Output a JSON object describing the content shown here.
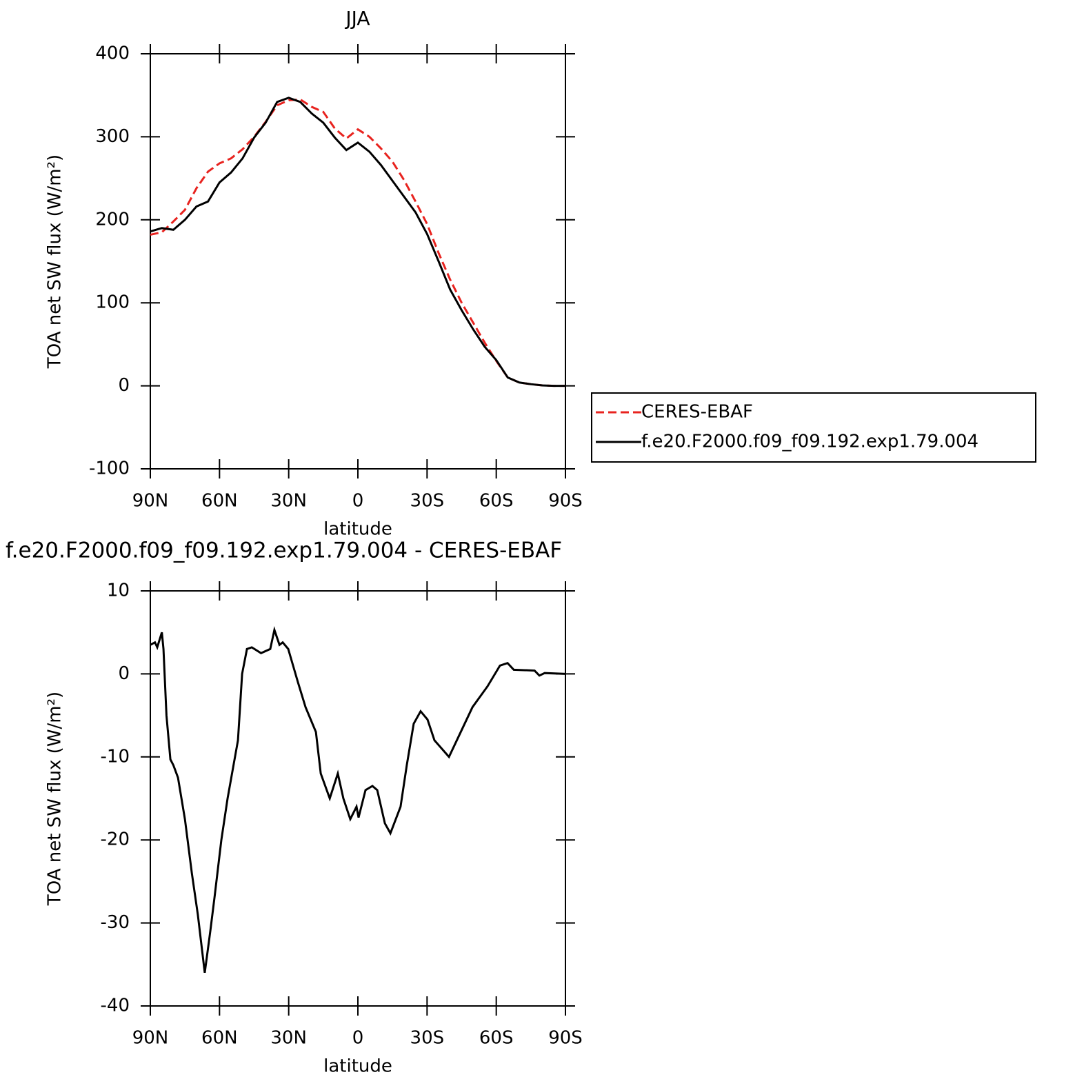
{
  "chart_data": [
    {
      "type": "line",
      "title": "JJA",
      "x_label": "latitude",
      "y_label": "TOA net SW flux (W/m²)",
      "x": [
        90,
        85,
        80,
        75,
        70,
        65,
        60,
        55,
        50,
        45,
        40,
        35,
        30,
        25,
        20,
        15,
        10,
        5,
        0,
        -5,
        -10,
        -15,
        -20,
        -25,
        -30,
        -35,
        -40,
        -45,
        -50,
        -55,
        -60,
        -65,
        -70,
        -75,
        -80,
        -85,
        -90
      ],
      "series": [
        {
          "name": "CERES-EBAF",
          "color": "#e8231f",
          "dashed": true,
          "values": [
            182,
            185,
            198,
            212,
            238,
            258,
            268,
            274,
            285,
            300,
            318,
            338,
            344,
            345,
            336,
            330,
            310,
            298,
            309,
            300,
            286,
            270,
            248,
            222,
            195,
            160,
            128,
            100,
            76,
            52,
            30,
            10,
            4,
            2,
            0.5,
            0,
            0
          ]
        },
        {
          "name": "f.e20.F2000.f09_f09.192.exp1.79.004",
          "color": "#000000",
          "dashed": false,
          "values": [
            186,
            190,
            188,
            200,
            216,
            222,
            245,
            257,
            274,
            299,
            317,
            342,
            347,
            342,
            328,
            317,
            299,
            284,
            293,
            282,
            266,
            247,
            228,
            209,
            183,
            150,
            116,
            91,
            68,
            47,
            31,
            10,
            4,
            2,
            0.5,
            0,
            0
          ]
        }
      ],
      "xlim": [
        90,
        -90
      ],
      "xticks": [
        {
          "value": 90,
          "label": "90N"
        },
        {
          "value": 60,
          "label": "60N"
        },
        {
          "value": 30,
          "label": "30N"
        },
        0,
        {
          "value": -30,
          "label": "30S"
        },
        {
          "value": -60,
          "label": "60S"
        },
        {
          "value": -90,
          "label": "90S"
        }
      ],
      "ylim": [
        -100,
        400
      ],
      "yticks": [
        -100,
        0,
        100,
        200,
        300,
        400
      ],
      "legend": "right"
    },
    {
      "type": "line",
      "title": "f.e20.F2000.f09_f09.192.exp1.79.004 - CERES-EBAF",
      "x_label": "latitude",
      "y_label": "TOA net SW flux (W/m²)",
      "x": [
        90,
        88,
        87,
        85,
        84.3,
        83,
        81.3,
        80,
        78,
        75,
        72,
        69.4,
        66.4,
        64,
        62.2,
        59.2,
        56.5,
        52,
        50.2,
        48.1,
        46,
        42,
        38,
        36.2,
        34,
        32.6,
        30.2,
        28.1,
        26,
        22.7,
        18.2,
        16.1,
        12.2,
        8.7,
        6.3,
        3.3,
        0.6,
        -0.3,
        -3.3,
        -6.3,
        -8.4,
        -11.7,
        -14.1,
        -18.5,
        -21.2,
        -24.2,
        -27.2,
        -30.2,
        -33.2,
        -39.5,
        -44.6,
        -49.7,
        -56.2,
        -61.6,
        -64.9,
        -67.6,
        -76.6,
        -78.7,
        -81,
        -90
      ],
      "series": [
        {
          "name": "f.e20.F2000.f09_f09.192.exp1.79.004 - CERES-EBAF",
          "color": "#000000",
          "dashed": false,
          "values": [
            3.5,
            3.8,
            3.2,
            5,
            3,
            -5,
            -10.3,
            -11,
            -12.5,
            -17.5,
            -24,
            -29,
            -36,
            -31,
            -27,
            -20,
            -15,
            -8,
            0,
            3,
            3.2,
            2.5,
            3,
            5.3,
            3.5,
            3.8,
            3,
            1,
            -1,
            -4,
            -7,
            -12,
            -15,
            -12,
            -15,
            -17.5,
            -16,
            -17.3,
            -14,
            -13.5,
            -14,
            -18,
            -19.2,
            -16,
            -11,
            -6,
            -4.5,
            -5.5,
            -8,
            -10,
            -7,
            -4,
            -1.5,
            1,
            1.3,
            0.5,
            0.4,
            -0.2,
            0.1,
            0
          ]
        }
      ],
      "xlim": [
        90,
        -90
      ],
      "xticks": [
        {
          "value": 90,
          "label": "90N"
        },
        {
          "value": 60,
          "label": "60N"
        },
        {
          "value": 30,
          "label": "30N"
        },
        0,
        {
          "value": -30,
          "label": "30S"
        },
        {
          "value": -60,
          "label": "60S"
        },
        {
          "value": -90,
          "label": "90S"
        }
      ],
      "ylim": [
        -40,
        10
      ],
      "yticks": [
        -40,
        -30,
        -20,
        -10,
        0,
        10
      ]
    }
  ]
}
